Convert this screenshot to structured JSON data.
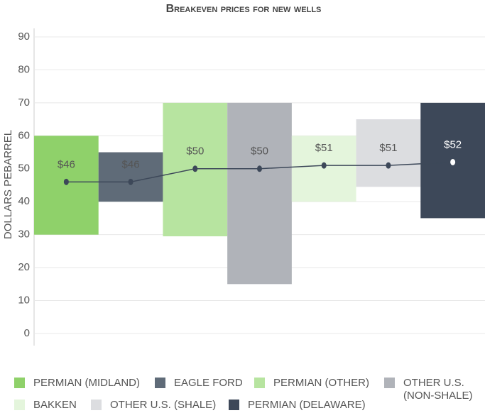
{
  "chart_data": {
    "type": "floating_bar",
    "title": "Breakeven prices for new wells",
    "y_label": "DOLLARS PEBARREL",
    "categories": [
      "PERMIAN (MIDLAND)",
      "EAGLE FORD",
      "PERMIAN (OTHER)",
      "OTHER U.S. (NON-SHALE)",
      "BAKKEN",
      "OTHER U.S. (SHALE)",
      "PERMIAN (DELAWARE)"
    ],
    "colors": [
      "#8fd16a",
      "#5f6b78",
      "#b7e4a0",
      "#b0b3b9",
      "#e4f5dc",
      "#dcdde0",
      "#3d4859"
    ],
    "low": [
      30,
      40,
      29.5,
      15,
      40,
      44.5,
      35
    ],
    "high": [
      60,
      55,
      70,
      70,
      60,
      65,
      70
    ],
    "breakeven": [
      46,
      46,
      50,
      50,
      51,
      51,
      52
    ],
    "value_labels": [
      "$46",
      "$46",
      "$50",
      "$50",
      "$51",
      "$51",
      "$52"
    ],
    "line_color": "#3d4859",
    "ylim": [
      0,
      90
    ],
    "yticks": [
      0,
      10,
      20,
      30,
      40,
      50,
      60,
      70,
      80,
      90
    ],
    "grid": true
  }
}
